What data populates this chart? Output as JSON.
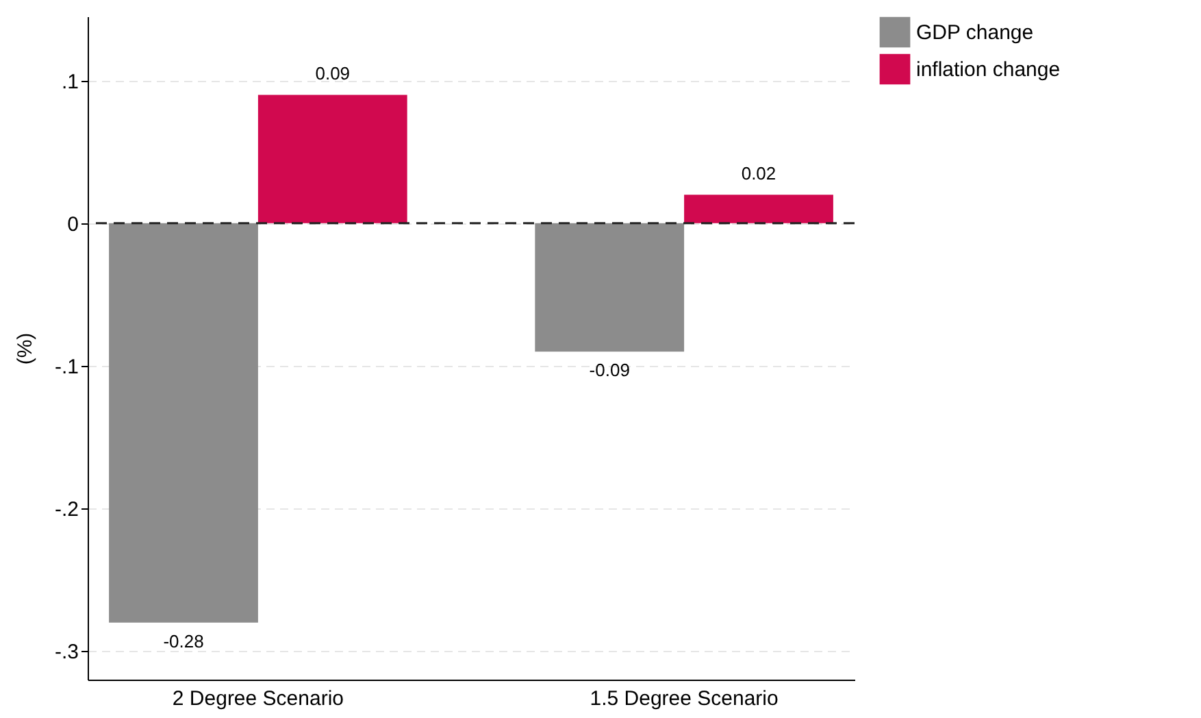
{
  "chart_data": {
    "type": "bar",
    "ylabel": "(%)",
    "categories": [
      "2 Degree Scenario",
      "1.5 Degree Scenario"
    ],
    "series": [
      {
        "name": "GDP change",
        "color": "#8c8c8c",
        "values": [
          -0.28,
          -0.09
        ]
      },
      {
        "name": "inflation change",
        "color": "#d1094f",
        "values": [
          0.09,
          0.02
        ]
      }
    ],
    "ylim": [
      -0.32,
      0.145
    ],
    "yticks": [
      {
        "value": 0.1,
        "label": ".1"
      },
      0,
      {
        "value": -0.1,
        "label": "-.1"
      },
      {
        "value": -0.2,
        "label": "-.2"
      },
      {
        "value": -0.3,
        "label": "-.3"
      }
    ],
    "grid": "y",
    "legend": "right",
    "data_labels": true,
    "ref_lines": [
      {
        "axis": "y",
        "value": 0,
        "color": "#222222",
        "line_style": "dashed"
      }
    ]
  }
}
